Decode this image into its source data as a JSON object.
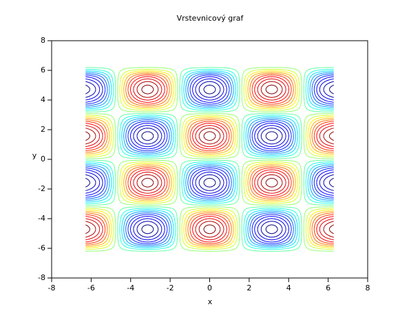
{
  "chart_data": {
    "type": "contour",
    "title": "Vrstevnicový graf",
    "x_label": "x",
    "y_label": "y",
    "xlim": [
      -8,
      8
    ],
    "ylim": [
      -8,
      8
    ],
    "xticks": [
      -8,
      -6,
      -4,
      -2,
      0,
      2,
      4,
      6,
      8
    ],
    "yticks": [
      -8,
      -6,
      -4,
      -2,
      0,
      2,
      4,
      6,
      8
    ],
    "x": [
      -6.283,
      -5.498,
      -4.712,
      -3.927,
      -3.142,
      -2.356,
      -1.571,
      -0.785,
      0,
      0.785,
      1.571,
      2.356,
      3.142,
      3.927,
      4.712,
      5.498,
      6.283
    ],
    "y": [
      -6.283,
      -5.498,
      -4.712,
      -3.927,
      -3.142,
      -2.356,
      -1.571,
      -0.785,
      0,
      0.785,
      1.571,
      2.356,
      3.142,
      3.927,
      4.712,
      5.498,
      6.283
    ],
    "z": [
      [
        0,
        0,
        0,
        0,
        0,
        0,
        0,
        0,
        0,
        0,
        0,
        0,
        0,
        0,
        0,
        0,
        0
      ],
      [
        0.707,
        0.5,
        0,
        -0.5,
        -0.707,
        -0.5,
        0,
        0.5,
        0.707,
        0.5,
        0,
        -0.5,
        -0.707,
        -0.5,
        0,
        0.5,
        0.707
      ],
      [
        1,
        0.707,
        0,
        -0.707,
        -1,
        -0.707,
        0,
        0.707,
        1,
        0.707,
        0,
        -0.707,
        -1,
        -0.707,
        0,
        0.707,
        1
      ],
      [
        0.707,
        0.5,
        0,
        -0.5,
        -0.707,
        -0.5,
        0,
        0.5,
        0.707,
        0.5,
        0,
        -0.5,
        -0.707,
        -0.5,
        0,
        0.5,
        0.707
      ],
      [
        0,
        0,
        0,
        0,
        0,
        0,
        0,
        0,
        0,
        0,
        0,
        0,
        0,
        0,
        0,
        0,
        0
      ],
      [
        -0.707,
        -0.5,
        0,
        0.5,
        0.707,
        0.5,
        0,
        -0.5,
        -0.707,
        -0.5,
        0,
        0.5,
        0.707,
        0.5,
        0,
        -0.5,
        -0.707
      ],
      [
        -1,
        -0.707,
        0,
        0.707,
        1,
        0.707,
        0,
        -0.707,
        -1,
        -0.707,
        0,
        0.707,
        1,
        0.707,
        0,
        -0.707,
        -1
      ],
      [
        -0.707,
        -0.5,
        0,
        0.5,
        0.707,
        0.5,
        0,
        -0.5,
        -0.707,
        -0.5,
        0,
        0.5,
        0.707,
        0.5,
        0,
        -0.5,
        -0.707
      ],
      [
        0,
        0,
        0,
        0,
        0,
        0,
        0,
        0,
        0,
        0,
        0,
        0,
        0,
        0,
        0,
        0,
        0
      ],
      [
        0.707,
        0.5,
        0,
        -0.5,
        -0.707,
        -0.5,
        0,
        0.5,
        0.707,
        0.5,
        0,
        -0.5,
        -0.707,
        -0.5,
        0,
        0.5,
        0.707
      ],
      [
        1,
        0.707,
        0,
        -0.707,
        -1,
        -0.707,
        0,
        0.707,
        1,
        0.707,
        0,
        -0.707,
        -1,
        -0.707,
        0,
        0.707,
        1
      ],
      [
        0.707,
        0.5,
        0,
        -0.5,
        -0.707,
        -0.5,
        0,
        0.5,
        0.707,
        0.5,
        0,
        -0.5,
        -0.707,
        -0.5,
        0,
        0.5,
        0.707
      ],
      [
        0,
        0,
        0,
        0,
        0,
        0,
        0,
        0,
        0,
        0,
        0,
        0,
        0,
        0,
        0,
        0,
        0
      ],
      [
        -0.707,
        -0.5,
        0,
        0.5,
        0.707,
        0.5,
        0,
        -0.5,
        -0.707,
        -0.5,
        0,
        0.5,
        0.707,
        0.5,
        0,
        -0.5,
        -0.707
      ],
      [
        -1,
        -0.707,
        0,
        0.707,
        1,
        0.707,
        0,
        -0.707,
        -1,
        -0.707,
        0,
        0.707,
        1,
        0.707,
        0,
        -0.707,
        -1
      ],
      [
        -0.707,
        -0.5,
        0,
        0.5,
        0.707,
        0.5,
        0,
        -0.5,
        -0.707,
        -0.5,
        0,
        0.5,
        0.707,
        0.5,
        0,
        -0.5,
        -0.707
      ],
      [
        0,
        0,
        0,
        0,
        0,
        0,
        0,
        0,
        0,
        0,
        0,
        0,
        0,
        0,
        0,
        0,
        0
      ]
    ],
    "levels": [
      {
        "level": -0.95,
        "color": "#000080"
      },
      {
        "level": -0.85,
        "color": "#0000b0"
      },
      {
        "level": -0.75,
        "color": "#0000df"
      },
      {
        "level": -0.65,
        "color": "#0000ff"
      },
      {
        "level": -0.55,
        "color": "#0020ff"
      },
      {
        "level": -0.45,
        "color": "#0060ff"
      },
      {
        "level": -0.35,
        "color": "#00a0ff"
      },
      {
        "level": -0.25,
        "color": "#00e0ff"
      },
      {
        "level": -0.15,
        "color": "#20ffe0"
      },
      {
        "level": -0.05,
        "color": "#60ffa0"
      },
      {
        "level": 0.05,
        "color": "#90ff70"
      },
      {
        "level": 0.15,
        "color": "#cfff30"
      },
      {
        "level": 0.25,
        "color": "#ffef00"
      },
      {
        "level": 0.35,
        "color": "#ffb000"
      },
      {
        "level": 0.45,
        "color": "#ff7000"
      },
      {
        "level": 0.55,
        "color": "#ff3000"
      },
      {
        "level": 0.65,
        "color": "#ff0000"
      },
      {
        "level": 0.75,
        "color": "#df0000"
      },
      {
        "level": 0.85,
        "color": "#b00000"
      },
      {
        "level": 0.95,
        "color": "#800000"
      }
    ]
  }
}
